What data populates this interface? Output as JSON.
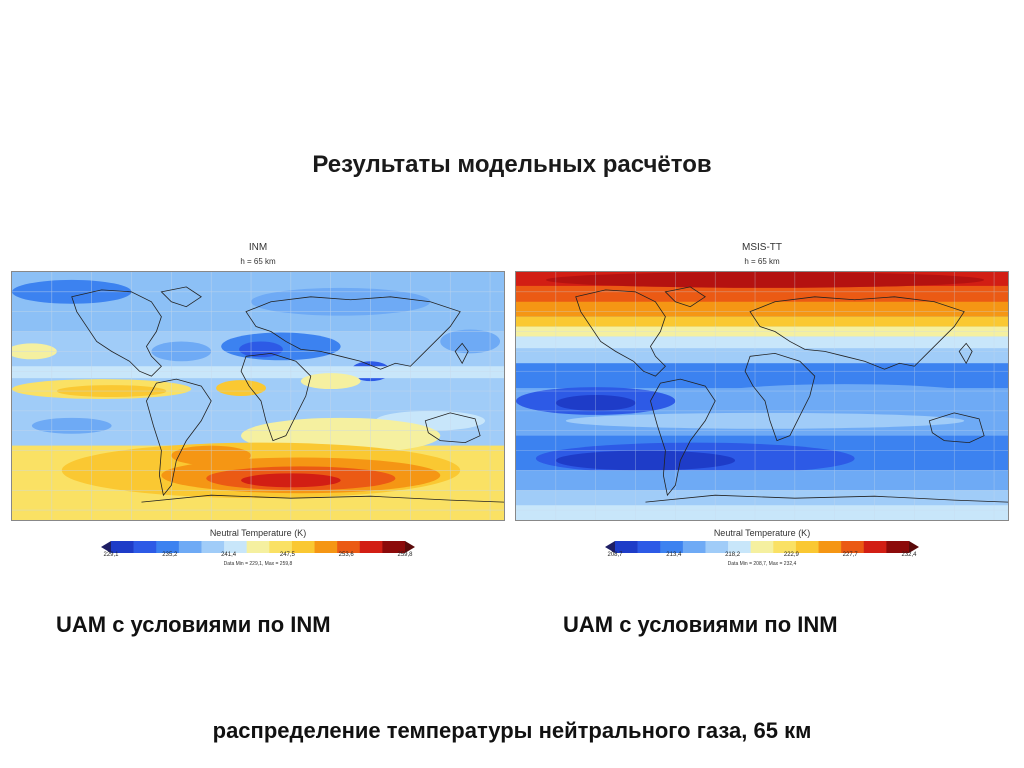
{
  "slide": {
    "title": "Результаты модельных расчётов",
    "footer": "распределение температуры нейтрального газа, 65 км"
  },
  "panels": [
    {
      "title": "INM",
      "subtitle": "h = 65 km",
      "colorbar_title": "Neutral Temperature (K)",
      "ticks": [
        "229,1",
        "235,2",
        "241,4",
        "247,5",
        "253,6",
        "259,8"
      ],
      "data_range": "Data Min = 229,1, Max = 259,8",
      "caption": "UAM с условиями по INM"
    },
    {
      "title": "MSIS-TT",
      "subtitle": "h = 65 km",
      "colorbar_title": "Neutral Temperature (K)",
      "ticks": [
        "208,7",
        "213,4",
        "218,2",
        "222,9",
        "227,7",
        "232,4"
      ],
      "data_range": "Data Min = 208,7, Max = 232,4",
      "caption": "UAM с условиями по INM"
    }
  ],
  "colorscale": [
    "#1e3cc8",
    "#2d5ae6",
    "#3c82f0",
    "#6eaaf5",
    "#a0ccf8",
    "#c8e6fa",
    "#f5f0a0",
    "#fae164",
    "#fac832",
    "#f59614",
    "#eb5a14",
    "#d21e14",
    "#8c0a0a"
  ],
  "colors": {
    "land_outline": "#222222",
    "grid": "#c8d8ea"
  }
}
